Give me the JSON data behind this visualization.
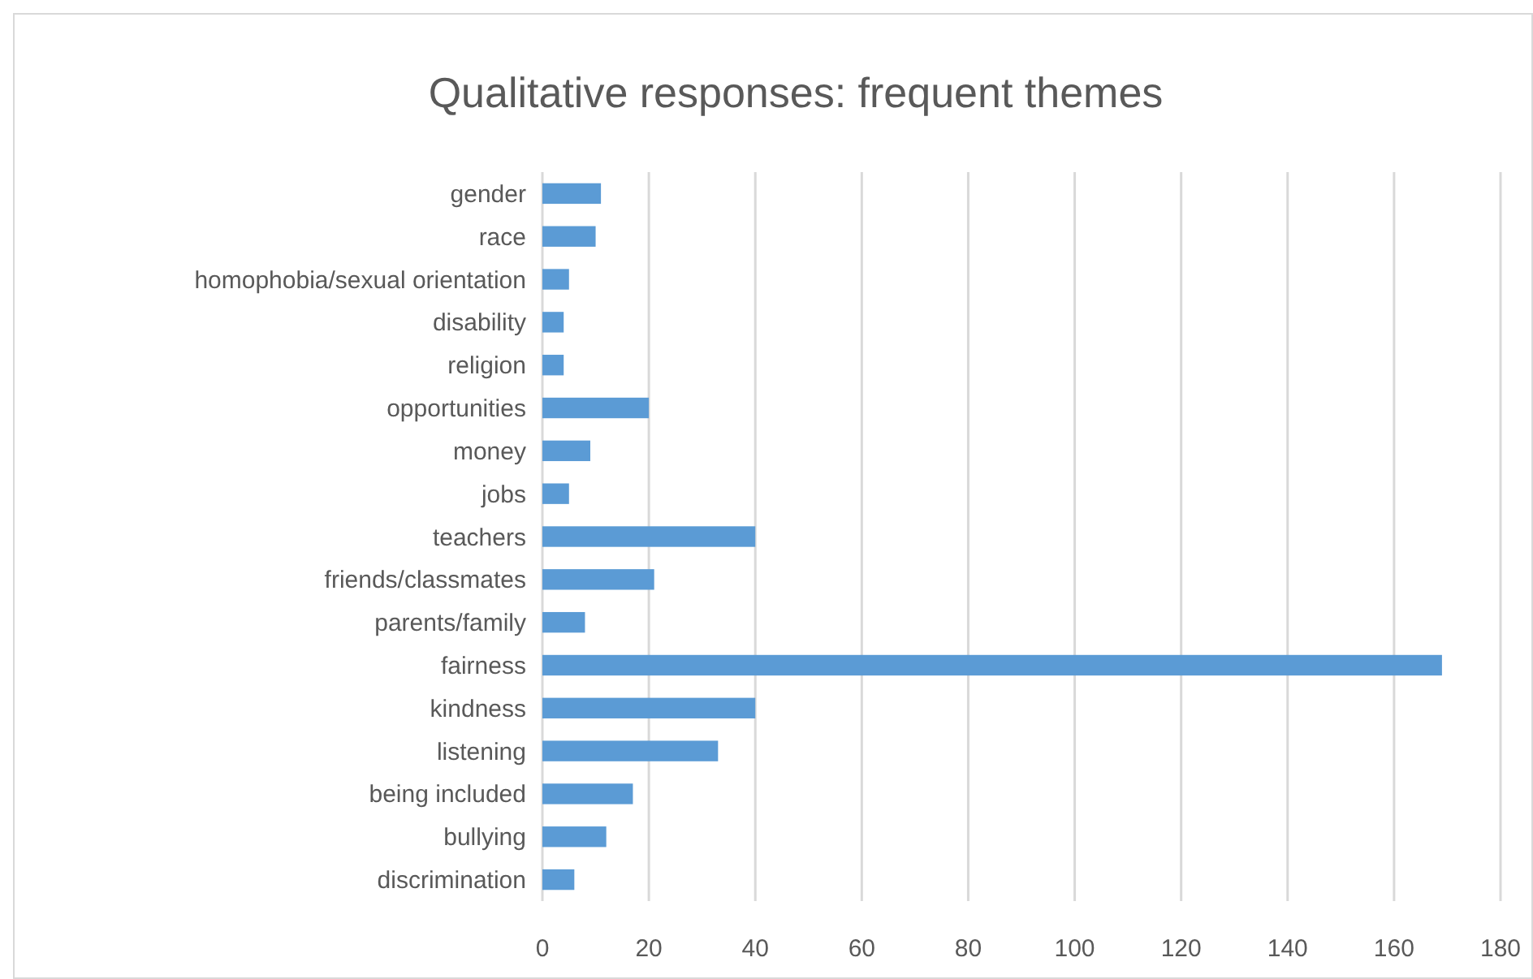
{
  "chart_data": {
    "type": "bar",
    "orientation": "horizontal",
    "title": "Qualitative responses: frequent themes",
    "categories": [
      "gender",
      "race",
      "homophobia/sexual orientation",
      "disability",
      "religion",
      "opportunities",
      "money",
      "jobs",
      "teachers",
      "friends/classmates",
      "parents/family",
      "fairness",
      "kindness",
      "listening",
      "being included",
      "bullying",
      "discrimination"
    ],
    "values": [
      11,
      10,
      5,
      4,
      4,
      20,
      9,
      5,
      40,
      21,
      8,
      169,
      40,
      33,
      17,
      12,
      6
    ],
    "color": "#5b9bd5",
    "xlim": [
      0,
      180
    ],
    "xticks": [
      0,
      20,
      40,
      60,
      80,
      100,
      120,
      140,
      160,
      180
    ],
    "grid": "x"
  }
}
